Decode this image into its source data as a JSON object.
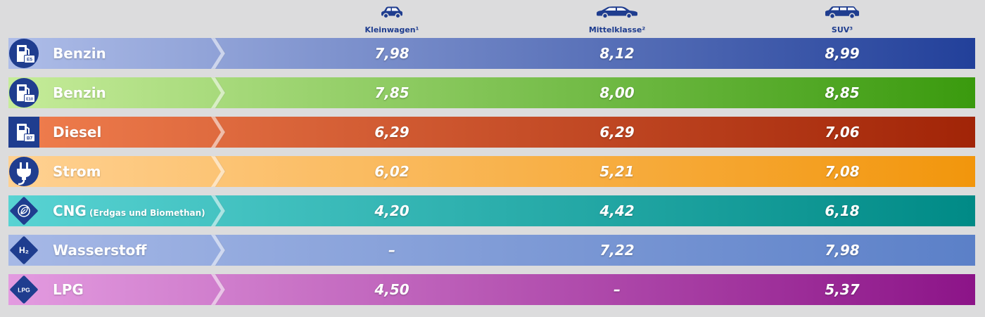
{
  "chart_data": {
    "type": "table",
    "columns": [
      {
        "label": "Kleinwagen¹",
        "icon": "small-car-icon"
      },
      {
        "label": "Mittelklasse²",
        "icon": "sedan-car-icon"
      },
      {
        "label": "SUV³",
        "icon": "suv-car-icon"
      }
    ],
    "rows": [
      {
        "name": "Benzin",
        "sub": "",
        "icon": "fuel-pump-e5-icon",
        "badge": "E5",
        "shape": "circle",
        "values": [
          "7,98",
          "8,12",
          "8,99"
        ],
        "colors": [
          "#aebde8",
          "#22409a"
        ]
      },
      {
        "name": "Benzin",
        "sub": "",
        "icon": "fuel-pump-e10-icon",
        "badge": "E10",
        "shape": "circle",
        "values": [
          "7,85",
          "8,00",
          "8,85"
        ],
        "colors": [
          "#c6ec9a",
          "#3a9a0e"
        ]
      },
      {
        "name": "Diesel",
        "sub": "",
        "icon": "fuel-pump-b7-icon",
        "badge": "B7",
        "shape": "square",
        "values": [
          "6,29",
          "6,29",
          "7,06"
        ],
        "colors": [
          "#f07e4e",
          "#a12407"
        ]
      },
      {
        "name": "Strom",
        "sub": "",
        "icon": "electric-plug-icon",
        "badge": "",
        "shape": "circle",
        "values": [
          "6,02",
          "5,21",
          "7,08"
        ],
        "colors": [
          "#ffd192",
          "#f2960c"
        ]
      },
      {
        "name": "CNG",
        "sub": "(Erdgas und Biomethan)",
        "icon": "cng-leaf-icon",
        "badge": "",
        "shape": "diamond",
        "values": [
          "4,20",
          "4,42",
          "6,18"
        ],
        "colors": [
          "#58d3d3",
          "#008a86"
        ]
      },
      {
        "name": "Wasserstoff",
        "sub": "",
        "icon": "hydrogen-h2-icon",
        "badge": "H₂",
        "shape": "diamond",
        "values": [
          "–",
          "7,22",
          "7,98"
        ],
        "colors": [
          "#a6b8e6",
          "#5b80c8"
        ]
      },
      {
        "name": "LPG",
        "sub": "",
        "icon": "lpg-icon",
        "badge": "LPG",
        "shape": "diamond",
        "values": [
          "4,50",
          "–",
          "5,37"
        ],
        "colors": [
          "#e39be0",
          "#8c1488"
        ]
      }
    ],
    "icon_color": "#1f3d8f",
    "background": "#dcdcdd"
  }
}
